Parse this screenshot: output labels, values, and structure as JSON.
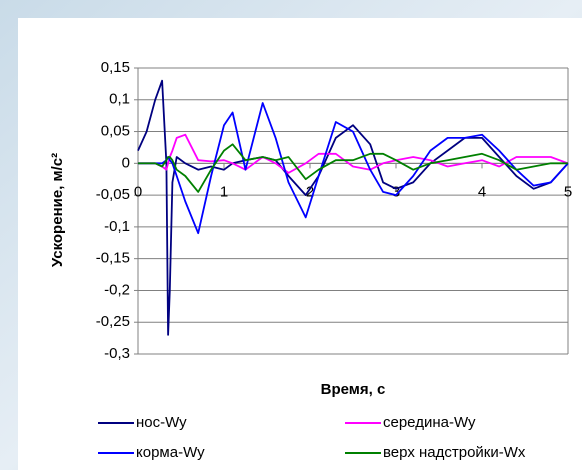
{
  "chart_data": {
    "type": "line",
    "xlabel": "Время, с",
    "ylabel": "Ускорение, м/с²",
    "x": [
      0,
      0.1,
      0.2,
      0.28,
      0.33,
      0.35,
      0.37,
      0.4,
      0.45,
      0.55,
      0.7,
      0.85,
      1,
      1.1,
      1.25,
      1.45,
      1.6,
      1.75,
      1.95,
      2.1,
      2.3,
      2.5,
      2.7,
      2.85,
      3,
      3.2,
      3.4,
      3.6,
      3.8,
      4,
      4.2,
      4.4,
      4.6,
      4.8,
      5
    ],
    "series": [
      {
        "name": "нос-Wy",
        "color": "#000080",
        "values": [
          0.02,
          0.05,
          0.1,
          0.13,
          0,
          -0.27,
          -0.2,
          -0.03,
          0.01,
          0,
          -0.01,
          -0.005,
          -0.01,
          0,
          0.005,
          0.01,
          0.005,
          -0.02,
          -0.05,
          -0.02,
          0.04,
          0.06,
          0.03,
          -0.03,
          -0.04,
          -0.03,
          0,
          0.02,
          0.04,
          0.04,
          0.01,
          -0.02,
          -0.04,
          -0.03,
          0
        ]
      },
      {
        "name": "середина-Wy",
        "color": "#ff00ff",
        "values": [
          0,
          0,
          0,
          -0.005,
          -0.01,
          0,
          0.01,
          0.02,
          0.04,
          0.045,
          0.005,
          0.003,
          0.005,
          0,
          -0.01,
          0.01,
          0,
          -0.015,
          0,
          0.015,
          0.015,
          -0.005,
          -0.01,
          0,
          0.005,
          0.01,
          0.005,
          -0.005,
          0,
          0.005,
          -0.005,
          0.01,
          0.01,
          0.01,
          0
        ]
      },
      {
        "name": "корма-Wy",
        "color": "#0000ff",
        "values": [
          0,
          0,
          0,
          0,
          0.005,
          0.01,
          0.005,
          0,
          -0.02,
          -0.06,
          -0.11,
          -0.02,
          0.06,
          0.08,
          -0.01,
          0.095,
          0.04,
          -0.03,
          -0.085,
          -0.02,
          0.065,
          0.05,
          -0.01,
          -0.045,
          -0.05,
          -0.02,
          0.02,
          0.04,
          0.04,
          0.045,
          0.02,
          -0.01,
          -0.035,
          -0.03,
          0
        ]
      },
      {
        "name": "верх надстройки-Wx",
        "color": "#008000",
        "values": [
          0,
          0,
          0,
          -0.005,
          0.005,
          0.01,
          0.01,
          0.005,
          -0.01,
          -0.02,
          -0.045,
          -0.01,
          0.02,
          0.03,
          0.005,
          0.01,
          0.005,
          0.01,
          -0.025,
          -0.01,
          0.005,
          0.005,
          0.015,
          0.015,
          0.005,
          -0.01,
          0,
          0.005,
          0.01,
          0.015,
          0.005,
          -0.01,
          -0.005,
          0,
          0
        ]
      }
    ],
    "xlim": [
      0,
      5
    ],
    "xticks": [
      0,
      1,
      2,
      3,
      4,
      5
    ],
    "ylim": [
      -0.3,
      0.15
    ],
    "yticks": [
      {
        "value": -0.3,
        "label": "-0,3"
      },
      {
        "value": -0.25,
        "label": "-0,25"
      },
      {
        "value": -0.2,
        "label": "-0,2"
      },
      {
        "value": -0.15,
        "label": "-0,15"
      },
      {
        "value": -0.1,
        "label": "-0,1"
      },
      {
        "value": -0.05,
        "label": "-0,05"
      },
      {
        "value": 0,
        "label": "0"
      },
      {
        "value": 0.05,
        "label": "0,05"
      },
      {
        "value": 0.1,
        "label": "0,1"
      },
      {
        "value": 0.15,
        "label": "0,15"
      }
    ],
    "grid": true
  }
}
